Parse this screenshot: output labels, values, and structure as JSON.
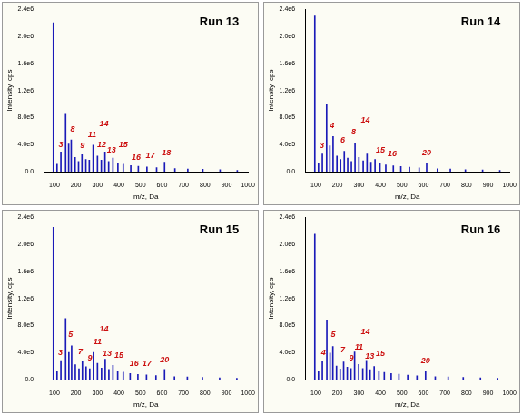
{
  "chart_data": [
    {
      "type": "bar",
      "title": "Run 13",
      "x_label": "m/z, Da",
      "y_label": "Intensity, cps",
      "color": "#1a1ab8",
      "grid": false,
      "xlim": [
        50,
        1000
      ],
      "xticks": [
        100,
        200,
        300,
        400,
        500,
        600,
        700,
        800,
        900,
        1000
      ],
      "ylim": [
        0,
        2400000
      ],
      "yticks": [
        {
          "value": 0,
          "label": "0.0"
        },
        {
          "value": 400000,
          "label": "4.0e5"
        },
        {
          "value": 800000,
          "label": "8.0e5"
        },
        {
          "value": 1200000,
          "label": "1.2e6"
        },
        {
          "value": 1600000,
          "label": "1.6e6"
        },
        {
          "value": 2000000,
          "label": "2.0e6"
        },
        {
          "value": 2400000,
          "label": "2.4e6"
        }
      ],
      "x": [
        95,
        112,
        130,
        152,
        166,
        178,
        196,
        212,
        228,
        246,
        262,
        280,
        300,
        318,
        335,
        352,
        372,
        395,
        420,
        455,
        490,
        530,
        575,
        612,
        660,
        720,
        790,
        870,
        950
      ],
      "values": [
        2200000,
        110000,
        290000,
        860000,
        410000,
        470000,
        210000,
        150000,
        250000,
        180000,
        170000,
        390000,
        230000,
        170000,
        290000,
        150000,
        200000,
        130000,
        110000,
        90000,
        80000,
        70000,
        60000,
        140000,
        45000,
        40000,
        35000,
        28000,
        20000
      ],
      "annotations": [
        {
          "label": "3",
          "x": 130,
          "y": 340000
        },
        {
          "label": "8",
          "x": 185,
          "y": 560000
        },
        {
          "label": "9",
          "x": 230,
          "y": 320000
        },
        {
          "label": "11",
          "x": 275,
          "y": 480000
        },
        {
          "label": "12",
          "x": 320,
          "y": 330000
        },
        {
          "label": "13",
          "x": 365,
          "y": 250000
        },
        {
          "label": "14",
          "x": 330,
          "y": 650000
        },
        {
          "label": "15",
          "x": 420,
          "y": 330000
        },
        {
          "label": "16",
          "x": 480,
          "y": 150000
        },
        {
          "label": "17",
          "x": 545,
          "y": 180000
        },
        {
          "label": "18",
          "x": 620,
          "y": 220000
        }
      ]
    },
    {
      "type": "bar",
      "title": "Run 14",
      "x_label": "m/z, Da",
      "y_label": "Intensity, cps",
      "color": "#1a1ab8",
      "grid": false,
      "xlim": [
        50,
        1000
      ],
      "xticks": [
        100,
        200,
        300,
        400,
        500,
        600,
        700,
        800,
        900,
        1000
      ],
      "ylim": [
        0,
        2400000
      ],
      "yticks": [
        {
          "value": 0,
          "label": "0.0"
        },
        {
          "value": 400000,
          "label": "4.0e5"
        },
        {
          "value": 800000,
          "label": "8.0e5"
        },
        {
          "value": 1200000,
          "label": "1.2e6"
        },
        {
          "value": 1600000,
          "label": "1.6e6"
        },
        {
          "value": 2000000,
          "label": "2.0e6"
        },
        {
          "value": 2400000,
          "label": "2.4e6"
        }
      ],
      "x": [
        95,
        112,
        130,
        150,
        165,
        180,
        198,
        215,
        232,
        248,
        265,
        282,
        300,
        320,
        338,
        356,
        375,
        398,
        425,
        460,
        495,
        535,
        580,
        615,
        665,
        725,
        795,
        875,
        955
      ],
      "values": [
        2300000,
        130000,
        260000,
        1000000,
        380000,
        520000,
        230000,
        180000,
        300000,
        200000,
        150000,
        420000,
        210000,
        160000,
        260000,
        140000,
        180000,
        120000,
        100000,
        85000,
        75000,
        65000,
        55000,
        120000,
        42000,
        38000,
        30000,
        25000,
        18000
      ],
      "annotations": [
        {
          "label": "3",
          "x": 128,
          "y": 320000
        },
        {
          "label": "4",
          "x": 175,
          "y": 620000
        },
        {
          "label": "6",
          "x": 225,
          "y": 400000
        },
        {
          "label": "8",
          "x": 275,
          "y": 520000
        },
        {
          "label": "14",
          "x": 330,
          "y": 700000
        },
        {
          "label": "15",
          "x": 400,
          "y": 260000
        },
        {
          "label": "16",
          "x": 455,
          "y": 200000
        },
        {
          "label": "20",
          "x": 615,
          "y": 220000
        }
      ]
    },
    {
      "type": "bar",
      "title": "Run 15",
      "x_label": "m/z, Da",
      "y_label": "Intensity, cps",
      "color": "#1a1ab8",
      "grid": false,
      "xlim": [
        50,
        1000
      ],
      "xticks": [
        100,
        200,
        300,
        400,
        500,
        600,
        700,
        800,
        900,
        1000
      ],
      "ylim": [
        0,
        2400000
      ],
      "yticks": [
        {
          "value": 0,
          "label": "0.0"
        },
        {
          "value": 400000,
          "label": "4.0e5"
        },
        {
          "value": 800000,
          "label": "8.0e5"
        },
        {
          "value": 1200000,
          "label": "1.2e6"
        },
        {
          "value": 1600000,
          "label": "1.6e6"
        },
        {
          "value": 2000000,
          "label": "2.0e6"
        },
        {
          "value": 2400000,
          "label": "2.4e6"
        }
      ],
      "x": [
        95,
        112,
        130,
        152,
        167,
        180,
        197,
        214,
        230,
        247,
        264,
        281,
        300,
        319,
        336,
        353,
        372,
        394,
        420,
        452,
        488,
        528,
        572,
        612,
        658,
        718,
        788,
        868,
        948
      ],
      "values": [
        2250000,
        120000,
        280000,
        900000,
        400000,
        500000,
        220000,
        160000,
        270000,
        190000,
        160000,
        400000,
        240000,
        170000,
        300000,
        150000,
        210000,
        120000,
        110000,
        90000,
        75000,
        68000,
        58000,
        150000,
        44000,
        40000,
        32000,
        26000,
        19000
      ],
      "annotations": [
        {
          "label": "3",
          "x": 128,
          "y": 330000
        },
        {
          "label": "5",
          "x": 175,
          "y": 600000
        },
        {
          "label": "7",
          "x": 220,
          "y": 350000
        },
        {
          "label": "9",
          "x": 265,
          "y": 250000
        },
        {
          "label": "11",
          "x": 300,
          "y": 500000
        },
        {
          "label": "13",
          "x": 345,
          "y": 320000
        },
        {
          "label": "14",
          "x": 330,
          "y": 680000
        },
        {
          "label": "15",
          "x": 400,
          "y": 300000
        },
        {
          "label": "16",
          "x": 470,
          "y": 180000
        },
        {
          "label": "17",
          "x": 530,
          "y": 170000
        },
        {
          "label": "20",
          "x": 612,
          "y": 230000
        }
      ]
    },
    {
      "type": "bar",
      "title": "Run 16",
      "x_label": "m/z, Da",
      "y_label": "Intensity, cps",
      "color": "#1a1ab8",
      "grid": false,
      "xlim": [
        50,
        1000
      ],
      "xticks": [
        100,
        200,
        300,
        400,
        500,
        600,
        700,
        800,
        900,
        1000
      ],
      "ylim": [
        0,
        2400000
      ],
      "yticks": [
        {
          "value": 0,
          "label": "0.0"
        },
        {
          "value": 400000,
          "label": "4.0e5"
        },
        {
          "value": 800000,
          "label": "8.0e5"
        },
        {
          "value": 1200000,
          "label": "1.2e6"
        },
        {
          "value": 1600000,
          "label": "1.6e6"
        },
        {
          "value": 2000000,
          "label": "2.0e6"
        },
        {
          "value": 2400000,
          "label": "2.4e6"
        }
      ],
      "x": [
        95,
        112,
        130,
        151,
        166,
        179,
        196,
        213,
        229,
        246,
        263,
        280,
        299,
        318,
        335,
        352,
        371,
        393,
        418,
        450,
        486,
        527,
        570,
        610,
        655,
        715,
        785,
        865,
        945
      ],
      "values": [
        2150000,
        115000,
        270000,
        880000,
        390000,
        490000,
        200000,
        155000,
        260000,
        185000,
        165000,
        410000,
        225000,
        165000,
        285000,
        145000,
        195000,
        125000,
        105000,
        88000,
        78000,
        66000,
        57000,
        130000,
        43000,
        39000,
        33000,
        27000,
        19000
      ],
      "annotations": [
        {
          "label": "4",
          "x": 135,
          "y": 330000
        },
        {
          "label": "5",
          "x": 180,
          "y": 600000
        },
        {
          "label": "7",
          "x": 225,
          "y": 380000
        },
        {
          "label": "9",
          "x": 265,
          "y": 250000
        },
        {
          "label": "11",
          "x": 300,
          "y": 420000
        },
        {
          "label": "13",
          "x": 350,
          "y": 280000
        },
        {
          "label": "14",
          "x": 330,
          "y": 650000
        },
        {
          "label": "15",
          "x": 400,
          "y": 320000
        },
        {
          "label": "20",
          "x": 610,
          "y": 210000
        }
      ]
    }
  ]
}
